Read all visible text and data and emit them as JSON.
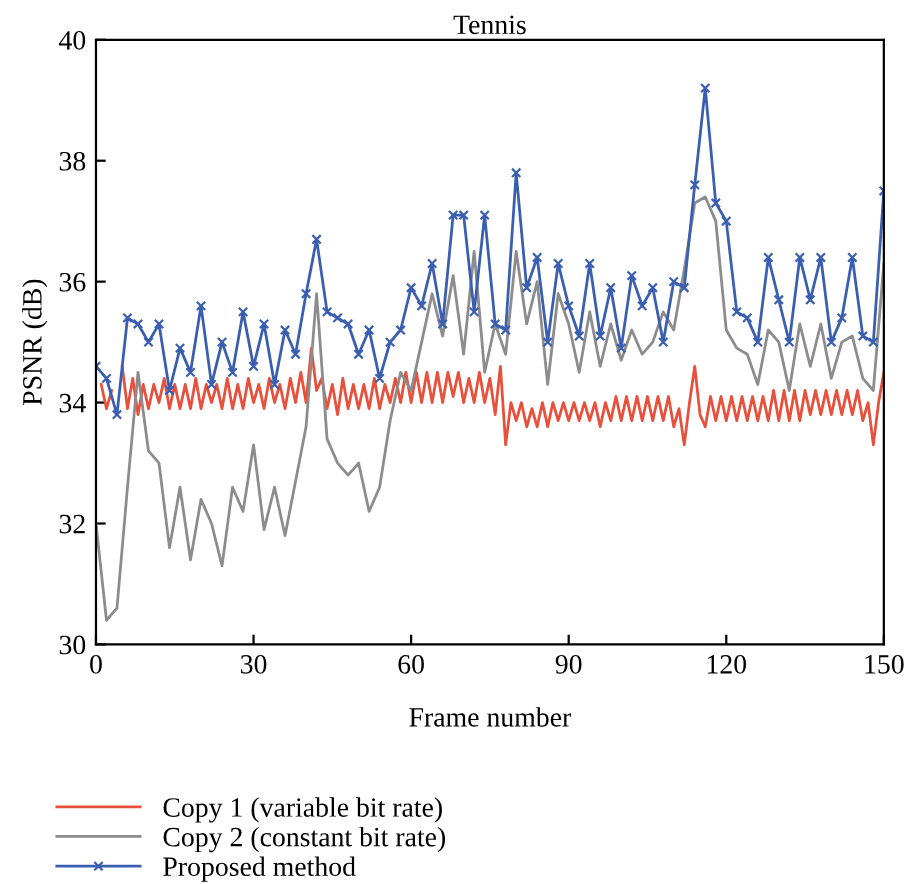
{
  "chart_data": {
    "type": "line",
    "title": "Tennis",
    "xlabel": "Frame number",
    "ylabel": "PSNR (dB)",
    "xlim": [
      0,
      150
    ],
    "xticks": [
      0,
      30,
      60,
      90,
      120,
      150
    ],
    "ylim": [
      30,
      40
    ],
    "yticks": [
      30,
      32,
      34,
      36,
      38,
      40
    ],
    "grid": false,
    "legend": "bottom",
    "series": [
      {
        "name": "Copy 1 (variable bit rate)",
        "color": "#e8503c",
        "marker": "none",
        "x": [
          1,
          2,
          3,
          4,
          5,
          6,
          7,
          8,
          9,
          10,
          11,
          12,
          13,
          14,
          15,
          16,
          17,
          18,
          19,
          20,
          21,
          22,
          23,
          24,
          25,
          26,
          27,
          28,
          29,
          30,
          31,
          32,
          33,
          34,
          35,
          36,
          37,
          38,
          39,
          40,
          41,
          42,
          43,
          44,
          45,
          46,
          47,
          48,
          49,
          50,
          51,
          52,
          53,
          54,
          55,
          56,
          57,
          58,
          59,
          60,
          61,
          62,
          63,
          64,
          65,
          66,
          67,
          68,
          69,
          70,
          71,
          72,
          73,
          74,
          75,
          76,
          77,
          78,
          79,
          80,
          81,
          82,
          83,
          84,
          85,
          86,
          87,
          88,
          89,
          90,
          91,
          92,
          93,
          94,
          95,
          96,
          97,
          98,
          99,
          100,
          101,
          102,
          103,
          104,
          105,
          106,
          107,
          108,
          109,
          110,
          111,
          112,
          113,
          114,
          115,
          116,
          117,
          118,
          119,
          120,
          121,
          122,
          123,
          124,
          125,
          126,
          127,
          128,
          129,
          130,
          131,
          132,
          133,
          134,
          135,
          136,
          137,
          138,
          139,
          140,
          141,
          142,
          143,
          144,
          145,
          146,
          147,
          148,
          149,
          150
        ],
        "values": [
          34.3,
          33.9,
          34.2,
          null,
          34.6,
          33.9,
          34.4,
          33.8,
          34.3,
          33.9,
          34.3,
          34.0,
          34.4,
          33.9,
          34.3,
          33.9,
          34.3,
          33.9,
          34.4,
          33.9,
          34.3,
          34.0,
          34.3,
          33.9,
          34.4,
          33.9,
          34.3,
          33.9,
          34.4,
          34.0,
          34.3,
          33.9,
          34.4,
          34.0,
          34.3,
          33.9,
          34.4,
          34.0,
          34.5,
          34.0,
          34.9,
          34.2,
          34.4,
          33.9,
          34.3,
          33.8,
          34.4,
          33.9,
          34.3,
          33.9,
          34.3,
          33.9,
          34.4,
          33.9,
          34.3,
          34.0,
          34.4,
          34.0,
          34.5,
          34.0,
          34.5,
          34.0,
          34.5,
          34.0,
          34.5,
          34.0,
          34.5,
          34.1,
          34.5,
          34.0,
          34.4,
          34.0,
          34.5,
          34.0,
          34.4,
          33.8,
          34.6,
          33.3,
          34.0,
          33.7,
          34.0,
          33.6,
          33.9,
          33.6,
          34.0,
          33.6,
          34.0,
          33.7,
          34.0,
          33.7,
          34.0,
          33.7,
          34.0,
          33.7,
          34.0,
          33.6,
          34.0,
          33.7,
          34.1,
          33.7,
          34.1,
          33.7,
          34.1,
          33.7,
          34.1,
          33.7,
          34.1,
          33.7,
          34.1,
          33.6,
          33.9,
          33.3,
          34.0,
          34.6,
          33.8,
          33.6,
          34.1,
          33.7,
          34.1,
          33.7,
          34.1,
          33.7,
          34.1,
          33.7,
          34.1,
          33.7,
          34.1,
          33.7,
          34.2,
          33.7,
          34.2,
          33.7,
          34.2,
          33.7,
          34.2,
          33.8,
          34.2,
          33.8,
          34.2,
          33.8,
          34.2,
          33.8,
          34.2,
          33.8,
          34.2,
          33.7,
          34.0,
          33.3,
          34.0,
          34.5
        ]
      },
      {
        "name": "Copy 2 (constant bit rate)",
        "color": "#8c8c8c",
        "marker": "none",
        "x": [
          0,
          2,
          4,
          6,
          8,
          10,
          12,
          14,
          16,
          18,
          20,
          22,
          24,
          26,
          28,
          30,
          32,
          34,
          36,
          38,
          40,
          42,
          44,
          46,
          48,
          50,
          52,
          54,
          56,
          58,
          60,
          62,
          64,
          66,
          68,
          70,
          72,
          74,
          76,
          78,
          80,
          82,
          84,
          86,
          88,
          90,
          92,
          94,
          96,
          98,
          100,
          102,
          104,
          106,
          108,
          110,
          112,
          114,
          116,
          118,
          120,
          122,
          124,
          126,
          128,
          130,
          132,
          134,
          136,
          138,
          140,
          142,
          144,
          146,
          148,
          150
        ],
        "values": [
          32.0,
          30.4,
          30.6,
          32.6,
          34.5,
          33.2,
          33.0,
          31.6,
          32.6,
          31.4,
          32.4,
          32.0,
          31.3,
          32.6,
          32.2,
          33.3,
          31.9,
          32.6,
          31.8,
          32.7,
          33.6,
          35.8,
          33.4,
          33.0,
          32.8,
          33.0,
          32.2,
          32.6,
          33.7,
          34.5,
          34.2,
          35.0,
          35.8,
          35.1,
          36.1,
          34.8,
          36.5,
          34.5,
          35.3,
          34.8,
          36.5,
          35.3,
          36.0,
          34.3,
          35.8,
          35.3,
          34.5,
          35.5,
          34.6,
          35.3,
          34.7,
          35.2,
          34.8,
          35.0,
          35.5,
          35.2,
          36.2,
          37.3,
          37.4,
          37.0,
          35.2,
          34.9,
          34.8,
          34.3,
          35.2,
          35.0,
          34.2,
          35.3,
          34.6,
          35.3,
          34.4,
          35.0,
          35.1,
          34.4,
          34.2,
          36.3
        ]
      },
      {
        "name": "Proposed method",
        "color": "#3a5fb0",
        "marker": "cross",
        "x": [
          0,
          2,
          4,
          6,
          8,
          10,
          12,
          14,
          16,
          18,
          20,
          22,
          24,
          26,
          28,
          30,
          32,
          34,
          36,
          38,
          40,
          42,
          44,
          46,
          48,
          50,
          52,
          54,
          56,
          58,
          60,
          62,
          64,
          66,
          68,
          70,
          72,
          74,
          76,
          78,
          80,
          82,
          84,
          86,
          88,
          90,
          92,
          94,
          96,
          98,
          100,
          102,
          104,
          106,
          108,
          110,
          112,
          114,
          116,
          118,
          120,
          122,
          124,
          126,
          128,
          130,
          132,
          134,
          136,
          138,
          140,
          142,
          144,
          146,
          148,
          150
        ],
        "values": [
          34.6,
          34.4,
          33.8,
          35.4,
          35.3,
          35.0,
          35.3,
          34.2,
          34.9,
          34.5,
          35.6,
          34.3,
          35.0,
          34.5,
          35.5,
          34.6,
          35.3,
          34.3,
          35.2,
          34.8,
          35.8,
          36.7,
          35.5,
          35.4,
          35.3,
          34.8,
          35.2,
          34.4,
          35.0,
          35.2,
          35.9,
          35.6,
          36.3,
          35.3,
          37.1,
          37.1,
          35.5,
          37.1,
          35.3,
          35.2,
          37.8,
          35.9,
          36.4,
          35.0,
          36.3,
          35.6,
          35.1,
          36.3,
          35.1,
          35.9,
          34.9,
          36.1,
          35.6,
          35.9,
          35.0,
          36.0,
          35.9,
          37.6,
          39.2,
          37.3,
          37.0,
          35.5,
          35.4,
          35.0,
          36.4,
          35.7,
          35.0,
          36.4,
          35.7,
          36.4,
          35.0,
          35.4,
          36.4,
          35.1,
          35.0,
          37.5
        ]
      }
    ]
  }
}
